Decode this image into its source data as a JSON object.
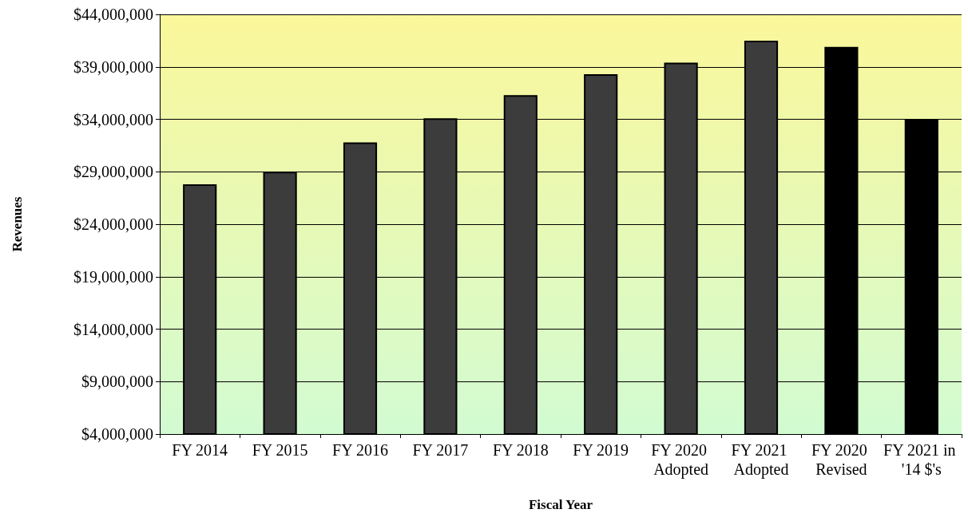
{
  "chart_data": {
    "type": "bar",
    "xlabel": "Fiscal Year",
    "ylabel": "Revenues",
    "categories": [
      "FY 2014",
      "FY 2015",
      "FY 2016",
      "FY 2017",
      "FY 2018",
      "FY 2019",
      "FY 2020 Adopted",
      "FY 2021 Adopted",
      "FY 2020 Revised",
      "FY 2021 in '14 $'s"
    ],
    "values": [
      27800000,
      29000000,
      31800000,
      34100000,
      36300000,
      38300000,
      39400000,
      41500000,
      40900000,
      34000000
    ],
    "colors": [
      "#3c3c3c",
      "#3c3c3c",
      "#3c3c3c",
      "#3c3c3c",
      "#3c3c3c",
      "#3c3c3c",
      "#3c3c3c",
      "#3c3c3c",
      "#000000",
      "#000000"
    ],
    "ylim": [
      4000000,
      44000000
    ],
    "yticks": [
      {
        "value": 4000000,
        "label": "$4,000,000"
      },
      {
        "value": 9000000,
        "label": "$9,000,000"
      },
      {
        "value": 14000000,
        "label": "$14,000,000"
      },
      {
        "value": 19000000,
        "label": "$19,000,000"
      },
      {
        "value": 24000000,
        "label": "$24,000,000"
      },
      {
        "value": 29000000,
        "label": "$29,000,000"
      },
      {
        "value": 34000000,
        "label": "$34,000,000"
      },
      {
        "value": 39000000,
        "label": "$39,000,000"
      },
      {
        "value": 44000000,
        "label": "$44,000,000"
      }
    ],
    "grid": "y"
  }
}
